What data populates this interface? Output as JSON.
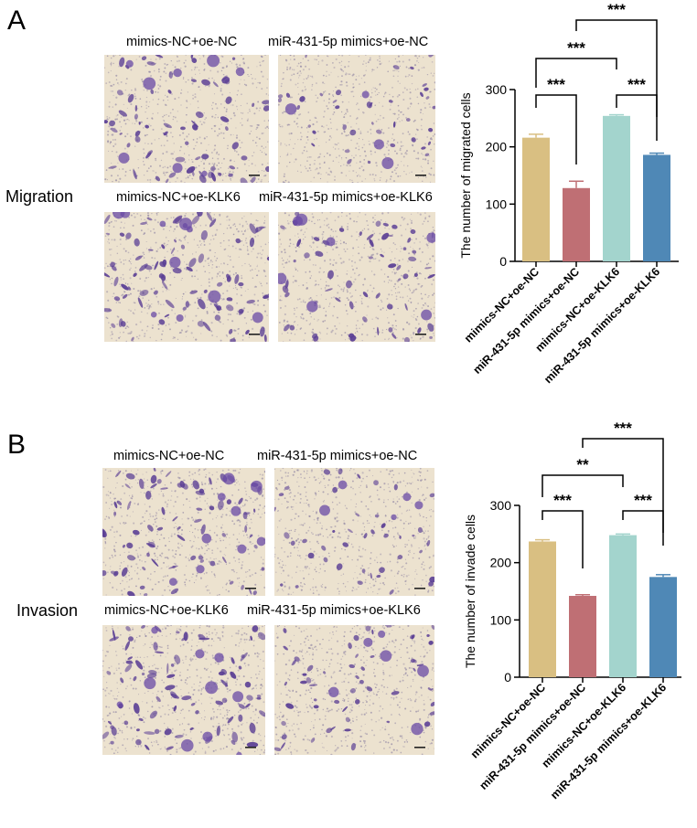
{
  "panels": [
    {
      "letter": "A",
      "row_label": "Migration",
      "image_titles": [
        "mimics-NC+oe-NC",
        "miR-431-5p mimics+oe-NC",
        "mimics-NC+oe-KLK6",
        "miR-431-5p mimics+oe-KLK6"
      ]
    },
    {
      "letter": "B",
      "row_label": "Invasion",
      "image_titles": [
        "mimics-NC+oe-NC",
        "miR-431-5p mimics+oe-NC",
        "mimics-NC+oe-KLK6",
        "miR-431-5p mimics+oe-KLK6"
      ]
    }
  ],
  "colors": {
    "bars": [
      "#d9bf82",
      "#bf6f74",
      "#a3d4cd",
      "#4f88b6"
    ],
    "stain": "#5b3f95",
    "background": "#ece2cf"
  },
  "chart_data": [
    {
      "type": "bar",
      "categories": [
        "mimics-NC+oe-NC",
        "miR-431-5p mimics+oe-NC",
        "mimics-NC+oe-KLK6",
        "miR-431-5p mimics+oe-KLK6"
      ],
      "values": [
        216,
        128,
        254,
        186
      ],
      "errors": [
        6,
        12,
        2,
        3
      ],
      "ylabel": "The number of migrated cells",
      "ylim": [
        0,
        300
      ],
      "yticks": [
        "0",
        "100",
        "200",
        "300"
      ],
      "significance": [
        {
          "pair": [
            1,
            2
          ],
          "label": "***"
        },
        {
          "pair": [
            3,
            4
          ],
          "label": "***"
        },
        {
          "pair": [
            1,
            3
          ],
          "label": "***"
        },
        {
          "pair": [
            2,
            4
          ],
          "label": "***"
        }
      ]
    },
    {
      "type": "bar",
      "categories": [
        "mimics-NC+oe-NC",
        "miR-431-5p mimics+oe-NC",
        "mimics-NC+oe-KLK6",
        "miR-431-5p mimics+oe-KLK6"
      ],
      "values": [
        237,
        142,
        248,
        175
      ],
      "errors": [
        3,
        2,
        2,
        4
      ],
      "ylabel": "The number of invade cells",
      "ylim": [
        0,
        300
      ],
      "yticks": [
        "0",
        "100",
        "200",
        "300"
      ],
      "significance": [
        {
          "pair": [
            1,
            2
          ],
          "label": "***"
        },
        {
          "pair": [
            3,
            4
          ],
          "label": "***"
        },
        {
          "pair": [
            1,
            3
          ],
          "label": "**"
        },
        {
          "pair": [
            2,
            4
          ],
          "label": "***"
        }
      ]
    }
  ]
}
